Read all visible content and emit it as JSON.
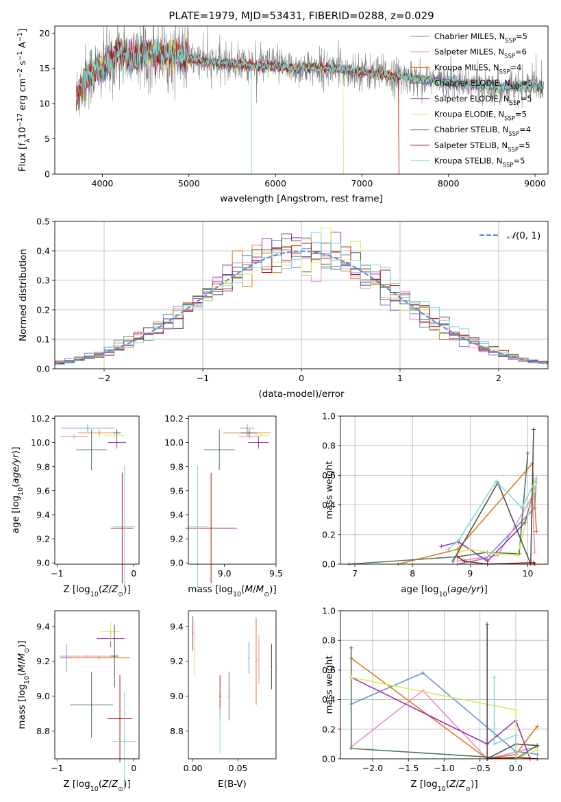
{
  "title": "PLATE=1979, MJD=53431, FIBERID=0288, z=0.029",
  "colors": [
    "#6a8fd4",
    "#ea8ccb",
    "#e07a1c",
    "#4c7a55",
    "#9a33a8",
    "#d4ec59",
    "#505050",
    "#b01818",
    "#80d6d6"
  ],
  "legend": [
    "Chabrier MILES, N_SSP=5",
    "Salpeter MILES, N_SSP=6",
    "Kroupa MILES, N_SSP=4",
    "Chabrier ELODIE, N_SSP=5",
    "Salpeter ELODIE, N_SSP=5",
    "Kroupa ELODIE, N_SSP=5",
    "Chabrier STELIB, N_SSP=4",
    "Salpeter STELIB, N_SSP=5",
    "Kroupa STELIB, N_SSP=5"
  ],
  "chart_data": [
    {
      "id": "spectrum",
      "type": "line",
      "xlabel": "wavelength [Angstrom, rest frame]",
      "ylabel": "Flux [fλ10^-17 erg cm^-2 s^-1 A^-1]",
      "xlim": [
        3450,
        9150
      ],
      "ylim": [
        0,
        21
      ],
      "xticks": [
        4000,
        5000,
        6000,
        7000,
        8000,
        9000
      ],
      "yticks": [
        0,
        5,
        10,
        15,
        20
      ],
      "continuum": [
        [
          3700,
          11
        ],
        [
          3800,
          13.5
        ],
        [
          3900,
          14.5
        ],
        [
          4000,
          15
        ],
        [
          4100,
          16
        ],
        [
          4200,
          17.5
        ],
        [
          4300,
          16.5
        ],
        [
          4500,
          17.2
        ],
        [
          4800,
          16.8
        ],
        [
          5000,
          16.5
        ],
        [
          5200,
          15.8
        ],
        [
          5500,
          15.7
        ],
        [
          5800,
          15.3
        ],
        [
          6000,
          15.3
        ],
        [
          6200,
          15
        ],
        [
          6500,
          15.1
        ],
        [
          6800,
          14.8
        ],
        [
          7000,
          14.6
        ],
        [
          7300,
          14
        ],
        [
          7600,
          13.6
        ],
        [
          8000,
          13
        ],
        [
          8300,
          12.6
        ],
        [
          8600,
          12.3
        ],
        [
          9000,
          12.5
        ],
        [
          9100,
          12.4
        ]
      ]
    },
    {
      "id": "residuals",
      "type": "histogram",
      "xlabel": "(data-model)/error",
      "ylabel": "Normed distribution",
      "xlim": [
        -2.5,
        2.5
      ],
      "ylim": [
        0,
        0.5
      ],
      "xticks": [
        -2,
        -1,
        0,
        1,
        2
      ],
      "yticks": [
        0.0,
        0.1,
        0.2,
        0.3,
        0.4,
        0.5
      ],
      "legend": "N(0,1)",
      "legend_position": "top-right",
      "grid": true,
      "bin_width": 0.1
    },
    {
      "id": "z_age",
      "type": "scatter",
      "xlabel": "Z [log10(Z/Z☉)]",
      "ylabel": "age  [log10(age/yr)]",
      "xlim": [
        -1.03,
        0.07
      ],
      "ylim": [
        8.99,
        10.22
      ],
      "xticks": [
        -1,
        0
      ],
      "yticks": [
        9.0,
        9.2,
        9.4,
        9.6,
        9.8,
        10.0,
        10.2
      ],
      "points": [
        {
          "x": -0.6,
          "y": 10.12,
          "xe": 0.35,
          "ye": 0.03
        },
        {
          "x": -0.78,
          "y": 10.05,
          "xe": 0.18,
          "ye": 0.02
        },
        {
          "x": -0.45,
          "y": 10.08,
          "xe": 0.28,
          "ye": 0.03
        },
        {
          "x": -0.55,
          "y": 9.94,
          "xe": 0.2,
          "ye": 0.17
        },
        {
          "x": -0.22,
          "y": 10.0,
          "xe": 0.12,
          "ye": 0.05
        },
        {
          "x": -0.25,
          "y": 10.06,
          "xe": 0.13,
          "ye": 0.02
        },
        {
          "x": -0.22,
          "y": 10.08,
          "xe": 0.05,
          "ye": 0.03
        },
        {
          "x": -0.15,
          "y": 9.29,
          "xe": 0.15,
          "ye": 0.46
        },
        {
          "x": -0.12,
          "y": 9.3,
          "xe": 0.15,
          "ye": 0.51
        }
      ]
    },
    {
      "id": "mass_age",
      "type": "scatter",
      "xlabel": "mass [log10(M/M☉)]",
      "ylabel": "",
      "xlim": [
        8.65,
        9.5
      ],
      "ylim": [
        8.99,
        10.22
      ],
      "xticks": [
        9.0,
        9.5
      ],
      "yticks": [
        9.0,
        9.2,
        9.4,
        9.6,
        9.8,
        10.0,
        10.2
      ],
      "points": [
        {
          "x": 9.22,
          "y": 10.12,
          "xe": 0.07,
          "ye": 0.03
        },
        {
          "x": 9.24,
          "y": 10.05,
          "xe": 0.1,
          "ye": 0.02
        },
        {
          "x": 9.22,
          "y": 10.08,
          "xe": 0.23,
          "ye": 0.03
        },
        {
          "x": 8.95,
          "y": 9.94,
          "xe": 0.15,
          "ye": 0.17
        },
        {
          "x": 9.33,
          "y": 10.0,
          "xe": 0.1,
          "ye": 0.05
        },
        {
          "x": 9.36,
          "y": 10.06,
          "xe": 0.07,
          "ye": 0.02
        },
        {
          "x": 9.24,
          "y": 10.08,
          "xe": 0.08,
          "ye": 0.03
        },
        {
          "x": 8.87,
          "y": 9.29,
          "xe": 0.25,
          "ye": 0.46
        },
        {
          "x": 8.74,
          "y": 9.3,
          "xe": 0.1,
          "ye": 0.51
        }
      ]
    },
    {
      "id": "age_weight",
      "type": "line",
      "xlabel": "age  [log10(age/yr)]",
      "ylabel": "mass weight",
      "xlim": [
        6.75,
        10.35
      ],
      "ylim": [
        0,
        1.0
      ],
      "xticks": [
        7,
        8,
        9,
        10
      ],
      "yticks": [
        0.0,
        0.2,
        0.4,
        0.6,
        0.8,
        1.0
      ],
      "grid": true,
      "series": [
        {
          "x": [
            8.78,
            9.28,
            10.12,
            10.15
          ],
          "y": [
            0.0,
            0.04,
            0.38,
            0.58
          ]
        },
        {
          "x": [
            8.78,
            9.48,
            10.08,
            10.12
          ],
          "y": [
            0.02,
            0.06,
            0.46,
            0.08
          ]
        },
        {
          "x": [
            7.75,
            8.78,
            10.08,
            10.15
          ],
          "y": [
            0.0,
            0.1,
            0.68,
            0.22
          ]
        },
        {
          "x": [
            6.9,
            8.78,
            9.3,
            9.85,
            10.0
          ],
          "y": [
            0.0,
            0.05,
            0.08,
            0.07,
            0.75
          ]
        },
        {
          "x": [
            8.5,
            8.8,
            9.3,
            9.95,
            10.15
          ],
          "y": [
            0.12,
            0.15,
            0.02,
            0.28,
            0.55
          ]
        },
        {
          "x": [
            8.8,
            9.0,
            9.48,
            9.82,
            10.15
          ],
          "y": [
            0.08,
            0.1,
            0.07,
            0.06,
            0.55
          ]
        },
        {
          "x": [
            8.7,
            9.48,
            10.05,
            10.1
          ],
          "y": [
            0.02,
            0.55,
            0.0,
            0.91
          ]
        },
        {
          "x": [
            8.78,
            8.9,
            9.3,
            10.1,
            10.12
          ],
          "y": [
            0.05,
            0.02,
            0.0,
            0.01,
            0.0
          ]
        },
        {
          "x": [
            8.62,
            8.8,
            9.45,
            9.9,
            10.15
          ],
          "y": [
            0.1,
            0.16,
            0.56,
            0.38,
            0.58
          ]
        }
      ]
    },
    {
      "id": "z_mass",
      "type": "scatter",
      "xlabel": "Z [log10(Z/Z☉)]",
      "ylabel": "mass [log10(M/M☉)]",
      "xlim": [
        -1.03,
        0.07
      ],
      "ylim": [
        8.64,
        9.49
      ],
      "xticks": [
        -1,
        0
      ],
      "yticks": [
        8.8,
        9.0,
        9.2,
        9.4
      ],
      "points": [
        {
          "x": -0.88,
          "y": 9.22,
          "xe": 0.08,
          "ye": 0.08
        },
        {
          "x": -0.62,
          "y": 9.23,
          "xe": 0.35,
          "ye": 0.01
        },
        {
          "x": -0.45,
          "y": 9.22,
          "xe": 0.4,
          "ye": 0.01
        },
        {
          "x": -0.55,
          "y": 8.95,
          "xe": 0.28,
          "ye": 0.19
        },
        {
          "x": -0.3,
          "y": 9.33,
          "xe": 0.18,
          "ye": 0.05
        },
        {
          "x": -0.3,
          "y": 9.37,
          "xe": 0.13,
          "ye": 0.06
        },
        {
          "x": -0.25,
          "y": 9.23,
          "xe": 0.05,
          "ye": 0.18
        },
        {
          "x": -0.18,
          "y": 8.87,
          "xe": 0.16,
          "ye": 0.25
        },
        {
          "x": -0.12,
          "y": 8.74,
          "xe": 0.16,
          "ye": 0.28
        }
      ]
    },
    {
      "id": "ebv_mass",
      "type": "scatter",
      "xlabel": "E(B-V)",
      "ylabel": "",
      "xlim": [
        -0.005,
        0.092
      ],
      "ylim": [
        8.64,
        9.49
      ],
      "xticks": [
        0.0,
        0.05
      ],
      "yticks": [
        8.8,
        9.0,
        9.2,
        9.4
      ],
      "points": [
        {
          "x": 0.062,
          "y": 9.22,
          "ye": 0.09
        },
        {
          "x": 0.073,
          "y": 9.21,
          "ye": 0.14
        },
        {
          "x": 0.07,
          "y": 9.2,
          "ye": 0.25
        },
        {
          "x": 0.04,
          "y": 9.0,
          "ye": 0.14
        },
        {
          "x": 0.0,
          "y": 9.36,
          "ye": 0.1
        },
        {
          "x": 0.002,
          "y": 9.27,
          "ye": 0.16
        },
        {
          "x": 0.087,
          "y": 9.17,
          "ye": 0.13
        },
        {
          "x": 0.03,
          "y": 9.0,
          "ye": 0.12
        },
        {
          "x": 0.03,
          "y": 8.8,
          "ye": 0.13
        }
      ]
    },
    {
      "id": "z_weight",
      "type": "line",
      "xlabel": "Z [log10(Z/Z☉)]",
      "ylabel": "mass weight",
      "xlim": [
        -2.45,
        0.45
      ],
      "ylim": [
        0,
        1.0
      ],
      "xticks": [
        -2.0,
        -1.5,
        -1.0,
        -0.5,
        0.0
      ],
      "yticks": [
        0.0,
        0.2,
        0.4,
        0.6,
        0.8,
        1.0
      ],
      "grid": true,
      "series": [
        {
          "x": [
            -2.3,
            -1.3,
            0.0,
            0.3
          ],
          "y": [
            0.37,
            0.58,
            0.05,
            0.03
          ]
        },
        {
          "x": [
            -2.3,
            -1.3,
            -0.4,
            0.3
          ],
          "y": [
            0.08,
            0.46,
            0.0,
            0.08
          ]
        },
        {
          "x": [
            -2.3,
            -0.4,
            0.0,
            0.3
          ],
          "y": [
            0.68,
            0.0,
            0.03,
            0.22
          ]
        },
        {
          "x": [
            -2.3,
            -2.3,
            0.0,
            0.3
          ],
          "y": [
            0.75,
            0.07,
            0.0,
            0.09
          ]
        },
        {
          "x": [
            -2.3,
            -0.4,
            0.0,
            0.2
          ],
          "y": [
            0.55,
            0.1,
            0.26,
            0.0
          ]
        },
        {
          "x": [
            -2.3,
            0.0,
            0.0,
            0.3
          ],
          "y": [
            0.55,
            0.33,
            0.0,
            0.06
          ]
        },
        {
          "x": [
            -0.4,
            -0.4,
            0.0,
            0.3
          ],
          "y": [
            0.91,
            0.0,
            0.1,
            0.09
          ]
        },
        {
          "x": [
            -0.4,
            0.0,
            0.3
          ],
          "y": [
            0.0,
            0.01,
            0.0
          ]
        },
        {
          "x": [
            -0.3,
            -0.3,
            0.0,
            0.0
          ],
          "y": [
            0.55,
            0.1,
            0.16,
            0.0
          ]
        }
      ]
    }
  ]
}
